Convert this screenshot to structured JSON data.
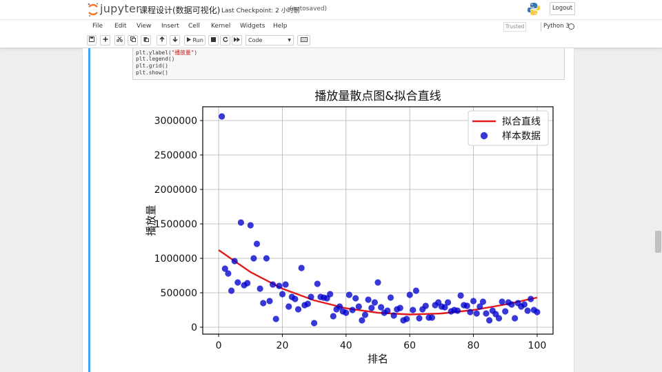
{
  "header": {
    "logo_text": "jupyter",
    "notebook_title": "课程设计(数据可视化)",
    "checkpoint": "Last Checkpoint: 2 小时前",
    "autosaved": "(autosaved)",
    "logout_label": "Logout"
  },
  "menu": {
    "items": [
      "File",
      "Edit",
      "View",
      "Insert",
      "Cell",
      "Kernel",
      "Widgets",
      "Help"
    ],
    "trusted": "Trusted",
    "kernel_name": "Python 3"
  },
  "toolbar": {
    "run_label": "Run",
    "cell_type": "Code",
    "icons": [
      "save-icon",
      "plus-icon",
      "cut-icon",
      "copy-icon",
      "paste-icon",
      "arrow-up-icon",
      "arrow-down-icon",
      "run-icon",
      "stop-icon",
      "restart-icon",
      "fast-forward-icon",
      "keyboard-icon"
    ]
  },
  "code": {
    "lines": [
      {
        "pre": "plt.ylabel(",
        "str": "\"播放量\"",
        "post": ")"
      },
      {
        "pre": "plt.legend()",
        "str": "",
        "post": ""
      },
      {
        "pre": "plt.grid()",
        "str": "",
        "post": ""
      },
      {
        "pre": "plt.show()",
        "str": "",
        "post": ""
      }
    ]
  },
  "colors": {
    "cell_bar": "#42a5f5",
    "point": "#0000cc",
    "fit_line": "#e31a1c"
  },
  "chart_data": {
    "type": "scatter",
    "title": "播放量散点图&拟合直线",
    "xlabel": "排名",
    "ylabel": "播放量",
    "xlim": [
      -5,
      105
    ],
    "ylim": [
      -100000,
      3200000
    ],
    "xticks": [
      0,
      20,
      40,
      60,
      80,
      100
    ],
    "yticks": [
      0,
      500000,
      1000000,
      1500000,
      2000000,
      2500000,
      3000000
    ],
    "grid": true,
    "legend_position": "top-right",
    "series": [
      {
        "name": "拟合直线",
        "kind": "line",
        "color": "#e31a1c",
        "x": [
          0,
          10,
          20,
          30,
          40,
          50,
          60,
          70,
          80,
          90,
          100
        ],
        "y": [
          1120000,
          800000,
          560000,
          390000,
          275000,
          210000,
          185000,
          200000,
          250000,
          330000,
          430000
        ]
      },
      {
        "name": "样本数据",
        "kind": "scatter",
        "color": "#0000cc",
        "x": [
          1,
          2,
          3,
          4,
          5,
          6,
          7,
          8,
          9,
          10,
          11,
          12,
          13,
          14,
          15,
          16,
          17,
          18,
          19,
          20,
          21,
          22,
          23,
          24,
          25,
          26,
          27,
          28,
          29,
          30,
          31,
          32,
          33,
          34,
          35,
          36,
          37,
          38,
          39,
          40,
          41,
          42,
          43,
          44,
          45,
          46,
          47,
          48,
          49,
          50,
          51,
          52,
          53,
          54,
          55,
          56,
          57,
          58,
          59,
          60,
          61,
          62,
          63,
          64,
          65,
          66,
          67,
          68,
          69,
          70,
          71,
          72,
          73,
          74,
          75,
          76,
          77,
          78,
          79,
          80,
          81,
          82,
          83,
          84,
          85,
          86,
          87,
          88,
          89,
          90,
          91,
          92,
          93,
          94,
          95,
          96,
          97,
          98,
          99,
          100
        ],
        "y": [
          3060000,
          850000,
          780000,
          530000,
          960000,
          650000,
          1520000,
          610000,
          640000,
          1480000,
          1000000,
          1210000,
          560000,
          350000,
          1000000,
          380000,
          620000,
          120000,
          600000,
          480000,
          620000,
          300000,
          440000,
          410000,
          260000,
          860000,
          320000,
          340000,
          440000,
          60000,
          630000,
          440000,
          430000,
          420000,
          480000,
          160000,
          260000,
          300000,
          230000,
          210000,
          470000,
          250000,
          420000,
          300000,
          100000,
          180000,
          400000,
          280000,
          360000,
          650000,
          290000,
          210000,
          240000,
          430000,
          170000,
          260000,
          280000,
          100000,
          120000,
          470000,
          250000,
          530000,
          130000,
          260000,
          310000,
          140000,
          140000,
          320000,
          360000,
          300000,
          290000,
          360000,
          230000,
          250000,
          240000,
          460000,
          320000,
          310000,
          220000,
          380000,
          200000,
          300000,
          370000,
          200000,
          100000,
          240000,
          190000,
          130000,
          370000,
          230000,
          360000,
          330000,
          130000,
          350000,
          300000,
          330000,
          240000,
          410000,
          250000,
          220000
        ]
      }
    ]
  }
}
